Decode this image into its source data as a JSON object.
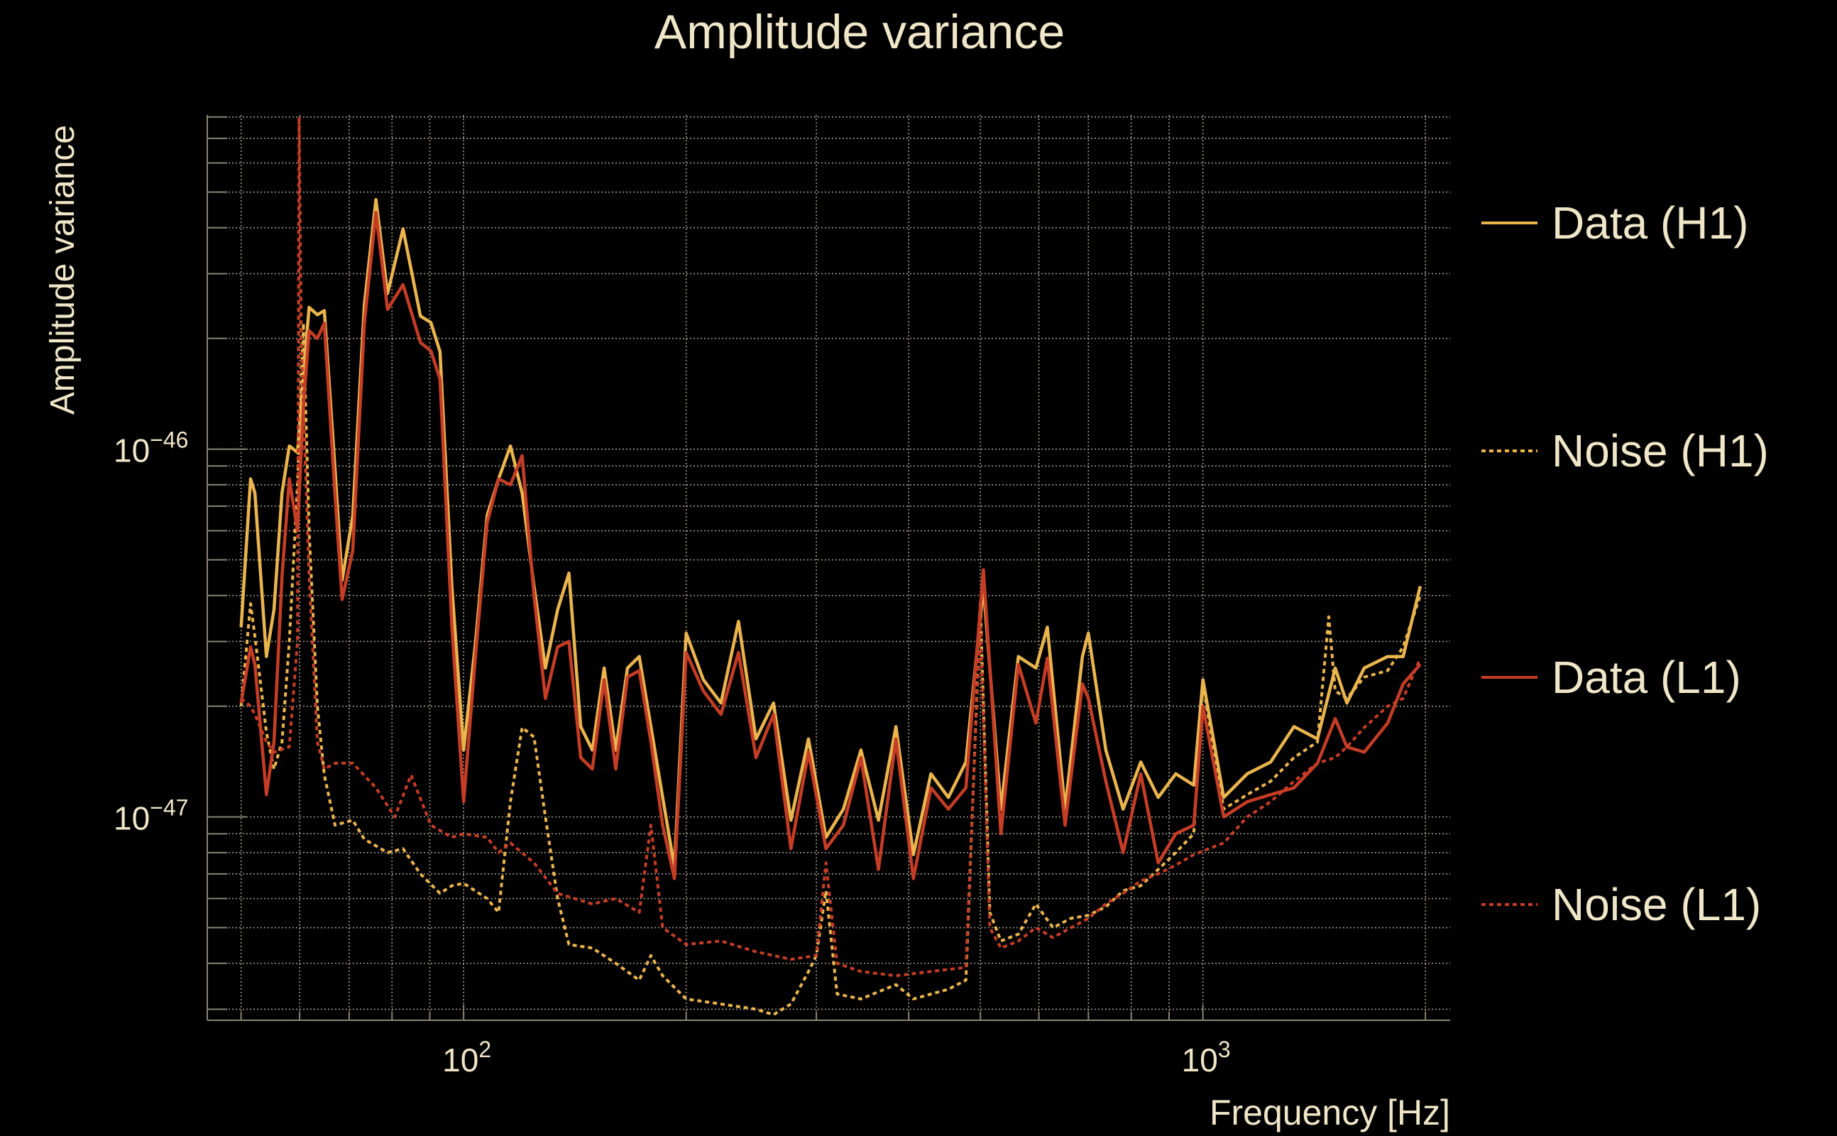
{
  "chart_data": {
    "type": "line",
    "title": "Amplitude variance",
    "xlabel": "Frequency [Hz]",
    "ylabel": "Amplitude variance",
    "xscale": "log",
    "yscale": "log",
    "xlim": [
      45,
      2160
    ],
    "ylim": [
      2.8e-48,
      8.1e-46
    ],
    "y_values_multiplier": 1e-47,
    "grid": true,
    "legend_placement": "right",
    "x_ticks": [
      {
        "base": "10",
        "exp": "2",
        "value": 100
      },
      {
        "base": "10",
        "exp": "3",
        "value": 1000
      }
    ],
    "y_ticks": [
      {
        "base": "10",
        "exp": "−46",
        "value": 1e-46
      },
      {
        "base": "10",
        "exp": "−47",
        "value": 1e-47
      }
    ],
    "colors": {
      "h1": "#ebb54e",
      "l1": "#c63d26",
      "text": "#f0e6c8"
    },
    "series": [
      {
        "name": "Data (H1)",
        "style": "solid",
        "color": "#ebb54e",
        "points": [
          [
            50,
            3.28
          ],
          [
            51.5,
            8.3
          ],
          [
            52.2,
            7.6
          ],
          [
            54.1,
            2.73
          ],
          [
            55.4,
            3.66
          ],
          [
            56.8,
            7.6
          ],
          [
            58.1,
            10.2
          ],
          [
            59.6,
            9.8
          ],
          [
            60.7,
            15.9
          ],
          [
            61.8,
            24.3
          ],
          [
            63.4,
            23.2
          ],
          [
            64.8,
            23.8
          ],
          [
            67,
            8.8
          ],
          [
            68.5,
            4.4
          ],
          [
            70.8,
            6.6
          ],
          [
            73.4,
            24.7
          ],
          [
            76.1,
            47.7
          ],
          [
            78.9,
            26.5
          ],
          [
            82.8,
            39.7
          ],
          [
            87.4,
            23
          ],
          [
            90.3,
            22.1
          ],
          [
            92.9,
            18.4
          ],
          [
            96.4,
            4.24
          ],
          [
            100,
            1.52
          ],
          [
            103.7,
            2.94
          ],
          [
            107.6,
            6.6
          ],
          [
            111.5,
            8.3
          ],
          [
            115.7,
            10.2
          ],
          [
            120,
            7.6
          ],
          [
            124.5,
            4.24
          ],
          [
            129,
            2.54
          ],
          [
            134,
            3.66
          ],
          [
            138.8,
            4.6
          ],
          [
            144,
            1.76
          ],
          [
            149.3,
            1.52
          ],
          [
            154.9,
            2.54
          ],
          [
            160.6,
            1.52
          ],
          [
            166.6,
            2.54
          ],
          [
            172.8,
            2.73
          ],
          [
            179.2,
            1.76
          ],
          [
            185.9,
            1.13
          ],
          [
            192.8,
            0.73
          ],
          [
            200,
            3.16
          ],
          [
            211,
            2.36
          ],
          [
            222.9,
            2.04
          ],
          [
            235.4,
            3.4
          ],
          [
            248.6,
            1.63
          ],
          [
            262.5,
            2.04
          ],
          [
            277.2,
            0.98
          ],
          [
            292.7,
            1.63
          ],
          [
            309.1,
            0.88
          ],
          [
            326.4,
            1.05
          ],
          [
            344.7,
            1.52
          ],
          [
            364,
            0.98
          ],
          [
            384.4,
            1.76
          ],
          [
            405.9,
            0.79
          ],
          [
            428.6,
            1.31
          ],
          [
            452.6,
            1.13
          ],
          [
            478,
            1.41
          ],
          [
            504.7,
            4.24
          ],
          [
            533,
            1.05
          ],
          [
            562.8,
            2.73
          ],
          [
            594.4,
            2.54
          ],
          [
            616,
            3.28
          ],
          [
            651,
            1.05
          ],
          [
            687,
            2.73
          ],
          [
            700,
            3.16
          ],
          [
            739,
            1.52
          ],
          [
            780,
            1.05
          ],
          [
            824,
            1.41
          ],
          [
            870,
            1.13
          ],
          [
            919,
            1.31
          ],
          [
            972,
            1.22
          ],
          [
            1000,
            2.36
          ],
          [
            1067,
            1.13
          ],
          [
            1148,
            1.31
          ],
          [
            1235,
            1.41
          ],
          [
            1328,
            1.76
          ],
          [
            1429,
            1.63
          ],
          [
            1510,
            2.54
          ],
          [
            1566,
            2.04
          ],
          [
            1653,
            2.54
          ],
          [
            1778,
            2.73
          ],
          [
            1866,
            2.73
          ],
          [
            1968,
            4.24
          ]
        ]
      },
      {
        "name": "Noise (H1)",
        "style": "dotted",
        "color": "#ebb54e",
        "points": [
          [
            50,
            2.0
          ],
          [
            51.5,
            3.8
          ],
          [
            52.2,
            3.1
          ],
          [
            54.1,
            1.7
          ],
          [
            55.4,
            1.35
          ],
          [
            56.8,
            1.6
          ],
          [
            58.1,
            3.0
          ],
          [
            59.6,
            8.0
          ],
          [
            60.7,
            22
          ],
          [
            61.8,
            6
          ],
          [
            63.4,
            2.0
          ],
          [
            64.8,
            1.3
          ],
          [
            67,
            0.95
          ],
          [
            70.8,
            0.98
          ],
          [
            73.4,
            0.87
          ],
          [
            78.9,
            0.8
          ],
          [
            82.8,
            0.82
          ],
          [
            87.4,
            0.7
          ],
          [
            92.9,
            0.62
          ],
          [
            96.4,
            0.65
          ],
          [
            100,
            0.66
          ],
          [
            107.6,
            0.6
          ],
          [
            111.5,
            0.55
          ],
          [
            115.7,
            1.1
          ],
          [
            120,
            1.75
          ],
          [
            124.5,
            1.65
          ],
          [
            129,
            1.0
          ],
          [
            134,
            0.6
          ],
          [
            138.8,
            0.45
          ],
          [
            149.3,
            0.44
          ],
          [
            160.6,
            0.4
          ],
          [
            172.8,
            0.36
          ],
          [
            179.2,
            0.42
          ],
          [
            185.9,
            0.37
          ],
          [
            200,
            0.32
          ],
          [
            222.9,
            0.31
          ],
          [
            248.6,
            0.3
          ],
          [
            262.5,
            0.29
          ],
          [
            277.2,
            0.31
          ],
          [
            292.7,
            0.38
          ],
          [
            300,
            0.42
          ],
          [
            309.1,
            0.63
          ],
          [
            320,
            0.33
          ],
          [
            344.7,
            0.32
          ],
          [
            384.4,
            0.35
          ],
          [
            405.9,
            0.32
          ],
          [
            452.6,
            0.34
          ],
          [
            478,
            0.36
          ],
          [
            500,
            3.8
          ],
          [
            515,
            0.55
          ],
          [
            533,
            0.46
          ],
          [
            562.8,
            0.48
          ],
          [
            594.4,
            0.58
          ],
          [
            627,
            0.5
          ],
          [
            663,
            0.53
          ],
          [
            700,
            0.54
          ],
          [
            739,
            0.57
          ],
          [
            780,
            0.63
          ],
          [
            824,
            0.65
          ],
          [
            870,
            0.72
          ],
          [
            919,
            0.8
          ],
          [
            972,
            0.9
          ],
          [
            1000,
            2.3
          ],
          [
            1067,
            1.05
          ],
          [
            1148,
            1.15
          ],
          [
            1235,
            1.25
          ],
          [
            1328,
            1.45
          ],
          [
            1429,
            1.6
          ],
          [
            1480,
            3.5
          ],
          [
            1510,
            2.2
          ],
          [
            1566,
            2.1
          ],
          [
            1653,
            2.4
          ],
          [
            1778,
            2.5
          ],
          [
            1866,
            2.9
          ],
          [
            1968,
            4.0
          ]
        ]
      },
      {
        "name": "Data (L1)",
        "style": "solid",
        "color": "#c63d26",
        "points": [
          [
            50,
            2.04
          ],
          [
            51.5,
            2.9
          ],
          [
            52.2,
            2.6
          ],
          [
            54.1,
            1.15
          ],
          [
            55.4,
            1.6
          ],
          [
            56.8,
            4.5
          ],
          [
            58.1,
            8.3
          ],
          [
            59.6,
            6.0
          ],
          [
            60.7,
            13
          ],
          [
            61.8,
            21
          ],
          [
            63.4,
            20
          ],
          [
            64.8,
            22
          ],
          [
            67,
            7.5
          ],
          [
            68.5,
            3.9
          ],
          [
            70.8,
            5.3
          ],
          [
            73.4,
            22
          ],
          [
            76.1,
            44
          ],
          [
            78.9,
            24
          ],
          [
            82.8,
            28
          ],
          [
            87.4,
            19.5
          ],
          [
            90.3,
            18.5
          ],
          [
            92.9,
            15.5
          ],
          [
            96.4,
            3.3
          ],
          [
            100,
            1.1
          ],
          [
            103.7,
            2.7
          ],
          [
            107.6,
            6.3
          ],
          [
            111.5,
            8.3
          ],
          [
            115.7,
            8.0
          ],
          [
            120,
            9.6
          ],
          [
            124.5,
            4.0
          ],
          [
            129,
            2.1
          ],
          [
            134,
            2.9
          ],
          [
            138.8,
            3.0
          ],
          [
            144,
            1.45
          ],
          [
            149.3,
            1.35
          ],
          [
            154.9,
            2.36
          ],
          [
            160.6,
            1.35
          ],
          [
            166.6,
            2.4
          ],
          [
            172.8,
            2.5
          ],
          [
            179.2,
            1.6
          ],
          [
            185.9,
            0.95
          ],
          [
            192.8,
            0.68
          ],
          [
            200,
            2.8
          ],
          [
            211,
            2.2
          ],
          [
            222.9,
            1.9
          ],
          [
            235.4,
            2.8
          ],
          [
            248.6,
            1.45
          ],
          [
            262.5,
            1.9
          ],
          [
            277.2,
            0.82
          ],
          [
            292.7,
            1.5
          ],
          [
            309.1,
            0.82
          ],
          [
            326.4,
            0.95
          ],
          [
            344.7,
            1.45
          ],
          [
            364,
            0.72
          ],
          [
            384.4,
            1.63
          ],
          [
            405.9,
            0.68
          ],
          [
            428.6,
            1.2
          ],
          [
            452.6,
            1.05
          ],
          [
            478,
            1.2
          ],
          [
            504.7,
            4.7
          ],
          [
            533,
            0.9
          ],
          [
            562.8,
            2.6
          ],
          [
            594.4,
            1.8
          ],
          [
            616,
            2.7
          ],
          [
            651,
            0.95
          ],
          [
            687,
            2.3
          ],
          [
            700,
            2.1
          ],
          [
            739,
            1.25
          ],
          [
            780,
            0.8
          ],
          [
            824,
            1.31
          ],
          [
            870,
            0.75
          ],
          [
            919,
            0.9
          ],
          [
            972,
            0.95
          ],
          [
            1000,
            2.0
          ],
          [
            1067,
            1.0
          ],
          [
            1148,
            1.1
          ],
          [
            1235,
            1.15
          ],
          [
            1328,
            1.2
          ],
          [
            1429,
            1.4
          ],
          [
            1510,
            1.85
          ],
          [
            1566,
            1.55
          ],
          [
            1653,
            1.5
          ],
          [
            1778,
            1.8
          ],
          [
            1866,
            2.3
          ],
          [
            1968,
            2.6
          ]
        ]
      },
      {
        "name": "Noise (L1)",
        "style": "dotted",
        "color": "#c63d26",
        "points": [
          [
            50,
            2.1
          ],
          [
            51.5,
            2.0
          ],
          [
            52.2,
            1.9
          ],
          [
            54.1,
            1.6
          ],
          [
            55.4,
            1.5
          ],
          [
            58.1,
            1.55
          ],
          [
            59.6,
            3.0
          ],
          [
            59.9,
            80
          ],
          [
            60.3,
            20
          ],
          [
            61.8,
            4.5
          ],
          [
            63.4,
            1.6
          ],
          [
            64.8,
            1.35
          ],
          [
            67,
            1.4
          ],
          [
            70.8,
            1.4
          ],
          [
            76.1,
            1.2
          ],
          [
            80.7,
            1.0
          ],
          [
            84.9,
            1.3
          ],
          [
            90.3,
            0.95
          ],
          [
            96.4,
            0.88
          ],
          [
            100,
            0.9
          ],
          [
            107.6,
            0.88
          ],
          [
            111.5,
            0.8
          ],
          [
            115.7,
            0.85
          ],
          [
            124.5,
            0.75
          ],
          [
            134,
            0.62
          ],
          [
            149.3,
            0.58
          ],
          [
            160.6,
            0.6
          ],
          [
            172.8,
            0.55
          ],
          [
            179.2,
            0.95
          ],
          [
            185.9,
            0.5
          ],
          [
            200,
            0.45
          ],
          [
            222.9,
            0.46
          ],
          [
            248.6,
            0.43
          ],
          [
            277.2,
            0.41
          ],
          [
            300,
            0.42
          ],
          [
            309.1,
            0.75
          ],
          [
            320,
            0.4
          ],
          [
            344.7,
            0.38
          ],
          [
            384.4,
            0.37
          ],
          [
            428.6,
            0.38
          ],
          [
            478,
            0.39
          ],
          [
            500,
            3.5
          ],
          [
            515,
            0.5
          ],
          [
            533,
            0.44
          ],
          [
            562.8,
            0.46
          ],
          [
            594.4,
            0.5
          ],
          [
            627,
            0.47
          ],
          [
            663,
            0.5
          ],
          [
            700,
            0.53
          ],
          [
            739,
            0.58
          ],
          [
            780,
            0.62
          ],
          [
            824,
            0.67
          ],
          [
            870,
            0.7
          ],
          [
            919,
            0.74
          ],
          [
            972,
            0.79
          ],
          [
            1067,
            0.85
          ],
          [
            1148,
            1.0
          ],
          [
            1235,
            1.1
          ],
          [
            1328,
            1.25
          ],
          [
            1429,
            1.4
          ],
          [
            1510,
            1.45
          ],
          [
            1566,
            1.55
          ],
          [
            1653,
            1.75
          ],
          [
            1778,
            2.0
          ],
          [
            1866,
            2.1
          ],
          [
            1968,
            2.7
          ]
        ]
      }
    ]
  }
}
